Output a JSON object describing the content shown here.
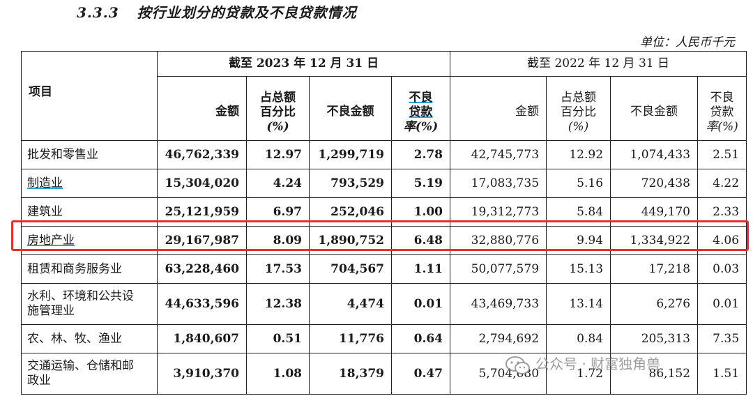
{
  "section": {
    "number": "3.3.3",
    "title": "按行业划分的贷款及不良贷款情况"
  },
  "unit": "单位：人民币千元",
  "table": {
    "item_header": "项目",
    "period_2023": "截至 2023 年 12 月 31 日",
    "period_2022": "截至 2022 年 12 月 31 日",
    "col_amount": "金额",
    "col_share_1": "占总额",
    "col_share_2": "百分比",
    "col_share_3": "(%)",
    "col_npl_amount": "不良金额",
    "col_npl_rate_1": "不良",
    "col_npl_rate_2": "贷款",
    "col_npl_rate_3": "率(%)",
    "rows": [
      {
        "label": "批发和零售业",
        "label2": "",
        "a23": "46,762,339",
        "s23": "12.97",
        "n23": "1,299,719",
        "r23": "2.78",
        "a22": "42,745,773",
        "s22": "12.92",
        "n22": "1,074,433",
        "r22": "2.51"
      },
      {
        "label": "制造业",
        "label2": "",
        "a23": "15,304,020",
        "s23": "4.24",
        "n23": "793,529",
        "r23": "5.19",
        "a22": "17,083,735",
        "s22": "5.16",
        "n22": "720,438",
        "r22": "4.22"
      },
      {
        "label": "建筑业",
        "label2": "",
        "a23": "25,121,959",
        "s23": "6.97",
        "n23": "252,046",
        "r23": "1.00",
        "a22": "19,312,773",
        "s22": "5.84",
        "n22": "449,170",
        "r22": "2.33"
      },
      {
        "label": "房地产业",
        "label2": "",
        "a23": "29,167,987",
        "s23": "8.09",
        "n23": "1,890,752",
        "r23": "6.48",
        "a22": "32,880,776",
        "s22": "9.94",
        "n22": "1,334,922",
        "r22": "4.06"
      },
      {
        "label": "租赁和商务服务业",
        "label2": "",
        "a23": "63,228,460",
        "s23": "17.53",
        "n23": "704,567",
        "r23": "1.11",
        "a22": "50,077,579",
        "s22": "15.13",
        "n22": "17,218",
        "r22": "0.03"
      },
      {
        "label": "水利、环境和公共设",
        "label2": "施管理业",
        "a23": "44,633,596",
        "s23": "12.38",
        "n23": "4,474",
        "r23": "0.01",
        "a22": "43,469,733",
        "s22": "13.14",
        "n22": "6,276",
        "r22": "0.01"
      },
      {
        "label": "农、林、牧、渔业",
        "label2": "",
        "a23": "1,840,607",
        "s23": "0.51",
        "n23": "11,776",
        "r23": "0.64",
        "a22": "2,794,692",
        "s22": "0.84",
        "n22": "205,313",
        "r22": "7.35"
      },
      {
        "label": "交通运输、仓储和邮",
        "label2": "政业",
        "a23": "3,910,370",
        "s23": "1.08",
        "n23": "18,379",
        "r23": "0.47",
        "a22": "5,704,680",
        "s22": "1.72",
        "n22": "86,152",
        "r22": "1.51"
      }
    ]
  },
  "watermark": {
    "text": "公众号 · 财富独角兽",
    "icon": "wechat-icon"
  },
  "colors": {
    "highlight": "#e8302a",
    "underline": "#2f9fd6"
  }
}
